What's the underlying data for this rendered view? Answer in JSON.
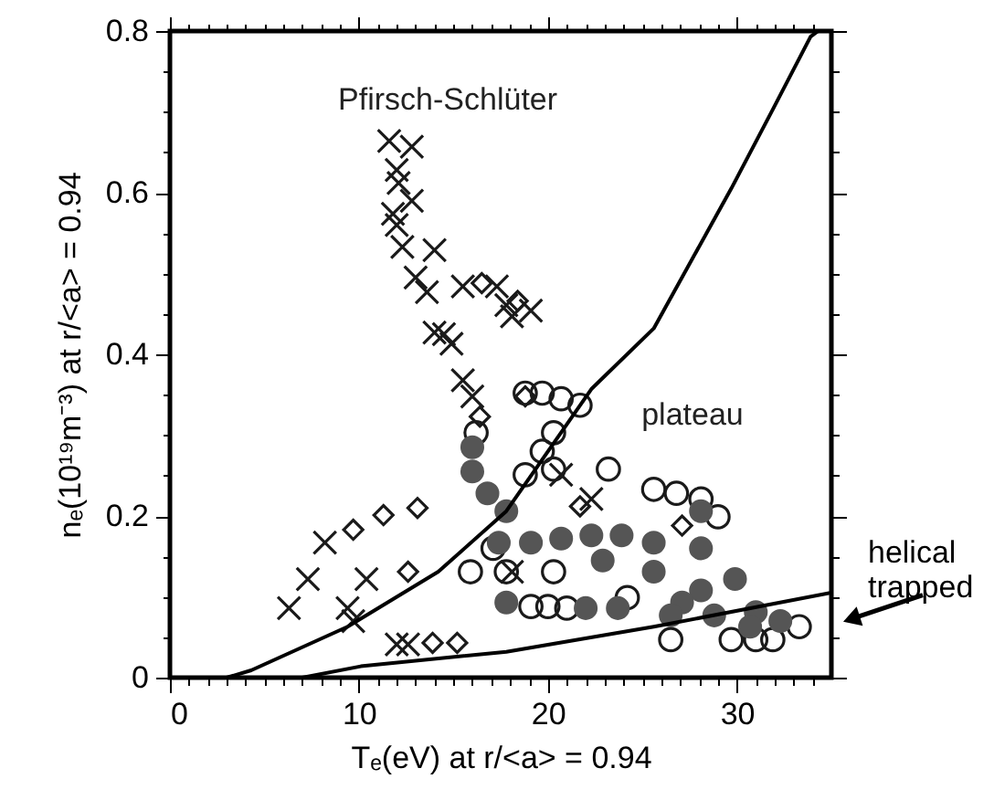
{
  "chart_data": {
    "type": "scatter",
    "xlabel": "Tₑ(eV) at r/<a> = 0.94",
    "ylabel": "nₑ(10¹⁹m⁻³) at r/<a> = 0.94",
    "xlim": [
      0,
      35
    ],
    "ylim": [
      0,
      0.8
    ],
    "xticks": [
      0,
      {
        "value": 1,
        "label": null
      },
      {
        "value": 2,
        "label": null
      },
      {
        "value": 3,
        "label": null
      },
      {
        "value": 4,
        "label": null
      },
      {
        "value": 5,
        "label": null
      },
      {
        "value": 6,
        "label": null
      },
      {
        "value": 7,
        "label": null
      },
      {
        "value": 8,
        "label": null
      },
      {
        "value": 9,
        "label": null
      },
      10,
      {
        "value": 11,
        "label": null
      },
      {
        "value": 12,
        "label": null
      },
      {
        "value": 13,
        "label": null
      },
      {
        "value": 14,
        "label": null
      },
      {
        "value": 15,
        "label": null
      },
      {
        "value": 16,
        "label": null
      },
      {
        "value": 17,
        "label": null
      },
      {
        "value": 18,
        "label": null
      },
      {
        "value": 19,
        "label": null
      },
      20,
      {
        "value": 21,
        "label": null
      },
      {
        "value": 22,
        "label": null
      },
      {
        "value": 23,
        "label": null
      },
      {
        "value": 24,
        "label": null
      },
      {
        "value": 25,
        "label": null
      },
      {
        "value": 26,
        "label": null
      },
      {
        "value": 27,
        "label": null
      },
      {
        "value": 28,
        "label": null
      },
      {
        "value": 29,
        "label": null
      },
      30,
      {
        "value": 31,
        "label": null
      },
      {
        "value": 32,
        "label": null
      },
      {
        "value": 33,
        "label": null
      },
      {
        "value": 34,
        "label": null
      }
    ],
    "yticks": [
      0,
      {
        "value": 0.05,
        "label": null
      },
      {
        "value": 0.1,
        "label": null
      },
      {
        "value": 0.15,
        "label": null
      },
      0.2,
      {
        "value": 0.25,
        "label": null
      },
      {
        "value": 0.3,
        "label": null
      },
      {
        "value": 0.35,
        "label": null
      },
      0.4,
      {
        "value": 0.45,
        "label": null
      },
      {
        "value": 0.5,
        "label": null
      },
      {
        "value": 0.55,
        "label": null
      },
      0.6,
      {
        "value": 0.65,
        "label": null
      },
      {
        "value": 0.7,
        "label": null
      },
      {
        "value": 0.75,
        "label": null
      },
      0.8
    ],
    "grid": false,
    "annotations": [
      "Pfirsch-Schlüter",
      "plateau",
      "helical\ntrapped"
    ],
    "series": [
      {
        "color": "#1a1a1a",
        "marker": "cross",
        "x": [
          11.6,
          12.8,
          12.0,
          12.1,
          12.8,
          11.8,
          12.0,
          12.3,
          14.0,
          13.0,
          13.6,
          15.5,
          17.3,
          17.8,
          19.1,
          18.1,
          14.0,
          14.9,
          14.5,
          15.5,
          16.0,
          8.2,
          7.3,
          6.3,
          9.4,
          9.7,
          10.4,
          12.0,
          12.6,
          18.1,
          20.7,
          22.3
        ],
        "values": [
          0.664,
          0.657,
          0.628,
          0.612,
          0.59,
          0.574,
          0.56,
          0.533,
          0.529,
          0.495,
          0.477,
          0.484,
          0.484,
          0.461,
          0.454,
          0.447,
          0.427,
          0.413,
          0.425,
          0.368,
          0.348,
          0.167,
          0.122,
          0.086,
          0.086,
          0.07,
          0.122,
          0.041,
          0.041,
          0.131,
          0.251,
          0.221
        ]
      },
      {
        "color": "#1a1a1a",
        "marker": "diamond",
        "x": [
          16.5,
          18.4,
          9.7,
          11.3,
          13.1,
          13.9,
          15.2,
          12.6,
          16.4,
          18.8,
          21.7,
          27.1
        ],
        "values": [
          0.488,
          0.466,
          0.183,
          0.201,
          0.21,
          0.043,
          0.043,
          0.131,
          0.323,
          0.348,
          0.212,
          0.188
        ]
      },
      {
        "color": "#1a1a1a",
        "marker": "circle",
        "x": [
          18.8,
          19.7,
          20.7,
          21.7,
          20.3,
          19.7,
          18.8,
          20.3,
          23.2,
          25.6,
          26.8,
          28.1,
          29.0,
          17.1,
          17.8,
          15.9,
          20.3,
          19.1,
          20.0,
          21.0,
          26.5,
          29.7,
          31.0,
          31.9,
          33.3,
          24.2,
          16.2
        ],
        "values": [
          0.352,
          0.352,
          0.345,
          0.337,
          0.303,
          0.28,
          0.251,
          0.258,
          0.258,
          0.233,
          0.228,
          0.221,
          0.199,
          0.16,
          0.131,
          0.131,
          0.131,
          0.088,
          0.088,
          0.086,
          0.047,
          0.047,
          0.047,
          0.047,
          0.063,
          0.099,
          0.303
        ]
      },
      {
        "color": "#555555",
        "marker": "circle",
        "x": [
          16.0,
          16.0,
          16.8,
          17.8,
          17.4,
          19.1,
          20.7,
          22.3,
          23.9,
          25.6,
          22.9,
          25.6,
          28.1,
          28.1,
          29.9,
          28.1,
          27.1,
          17.8,
          22.0,
          23.7,
          26.5,
          28.8,
          31.0,
          30.7,
          32.3
        ],
        "values": [
          0.285,
          0.255,
          0.228,
          0.206,
          0.167,
          0.167,
          0.172,
          0.176,
          0.176,
          0.167,
          0.145,
          0.131,
          0.206,
          0.16,
          0.122,
          0.108,
          0.093,
          0.093,
          0.086,
          0.086,
          0.077,
          0.077,
          0.081,
          0.063,
          0.07
        ]
      },
      {
        "type": "line",
        "color": "#000000",
        "marker": "none",
        "line_style": "solid",
        "x": [
          3,
          4.3,
          9.4,
          14.2,
          17.8,
          22.3,
          25.6,
          29.7,
          31.9,
          33.9,
          34.3
        ],
        "values": [
          0,
          0.009,
          0.063,
          0.131,
          0.206,
          0.357,
          0.432,
          0.605,
          0.703,
          0.793,
          0.8
        ]
      },
      {
        "type": "line",
        "color": "#000000",
        "marker": "none",
        "line_style": "solid",
        "x": [
          7,
          10.1,
          17.8,
          25.6,
          35
        ],
        "values": [
          0,
          0.014,
          0.032,
          0.063,
          0.105
        ]
      }
    ]
  }
}
